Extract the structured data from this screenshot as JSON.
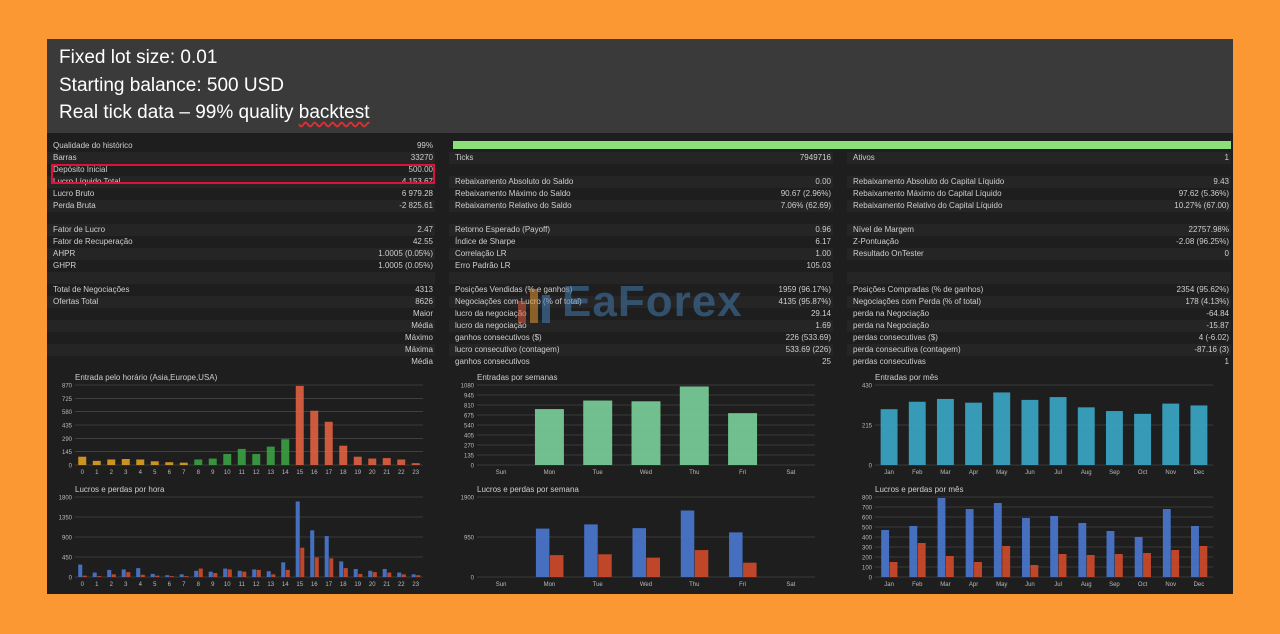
{
  "banner": {
    "line1": "Fixed lot size: 0.01",
    "line2": "Starting balance: 500 USD",
    "line3a": "Real tick data – 99% quality ",
    "line3b": "backtest"
  },
  "report": {
    "col1": [
      {
        "label": "Qualidade do histórico",
        "value": "99%"
      },
      {
        "label": "Barras",
        "value": "33270"
      },
      {
        "label": "Depósito Inicial",
        "value": "500.00"
      },
      {
        "label": "Lucro Líquido Total",
        "value": "4 153.67"
      },
      {
        "label": "Lucro Bruto",
        "value": "6 979.28"
      },
      {
        "label": "Perda Bruta",
        "value": "-2 825.61"
      },
      {
        "label": "",
        "value": ""
      },
      {
        "label": "Fator de Lucro",
        "value": "2.47"
      },
      {
        "label": "Fator de Recuperação",
        "value": "42.55"
      },
      {
        "label": "AHPR",
        "value": "1.0005 (0.05%)"
      },
      {
        "label": "GHPR",
        "value": "1.0005 (0.05%)"
      },
      {
        "label": "",
        "value": ""
      },
      {
        "label": "Total de Negociações",
        "value": "4313"
      },
      {
        "label": "Ofertas Total",
        "value": "8626"
      },
      {
        "label": "",
        "sub": "Maior",
        "value": ""
      },
      {
        "label": "",
        "sub": "Média",
        "value": ""
      },
      {
        "label": "",
        "sub": "Máximo",
        "value": ""
      },
      {
        "label": "",
        "sub": "Máxima",
        "value": ""
      },
      {
        "label": "",
        "sub": "Média",
        "value": ""
      }
    ],
    "col2": [
      {
        "label": "",
        "value": ""
      },
      {
        "label": "Ticks",
        "value": "7949716"
      },
      {
        "label": "",
        "value": ""
      },
      {
        "label": "Rebaixamento Absoluto do Saldo",
        "value": "0.00"
      },
      {
        "label": "Rebaixamento Máximo do Saldo",
        "value": "90.67 (2.96%)"
      },
      {
        "label": "Rebaixamento Relativo do Saldo",
        "value": "7.06% (62.69)"
      },
      {
        "label": "",
        "value": ""
      },
      {
        "label": "Retorno Esperado (Payoff)",
        "value": "0.96"
      },
      {
        "label": "Índice de Sharpe",
        "value": "6.17"
      },
      {
        "label": "Correlação LR",
        "value": "1.00"
      },
      {
        "label": "Erro Padrão LR",
        "value": "105.03"
      },
      {
        "label": "",
        "value": ""
      },
      {
        "label": "Posições Vendidas (% e ganhos)",
        "value": "1959 (96.17%)"
      },
      {
        "label": "Negociações com Lucro (% of total)",
        "value": "4135 (95.87%)"
      },
      {
        "label": "lucro da negociação",
        "value": "29.14"
      },
      {
        "label": "lucro da negociação",
        "value": "1.69"
      },
      {
        "label": "ganhos consecutivos ($)",
        "value": "226 (533.69)"
      },
      {
        "label": "lucro consecutivo (contagem)",
        "value": "533.69 (226)"
      },
      {
        "label": "ganhos consecutivos",
        "value": "25"
      }
    ],
    "col3": [
      {
        "label": "",
        "value": ""
      },
      {
        "label": "Ativos",
        "value": "1"
      },
      {
        "label": "",
        "value": ""
      },
      {
        "label": "Rebaixamento Absoluto do Capital Líquido",
        "value": "9.43"
      },
      {
        "label": "Rebaixamento Máximo do Capital Líquido",
        "value": "97.62 (5.36%)"
      },
      {
        "label": "Rebaixamento Relativo do Capital Líquido",
        "value": "10.27% (67.00)"
      },
      {
        "label": "",
        "value": ""
      },
      {
        "label": "Nível de Margem",
        "value": "22757.98%"
      },
      {
        "label": "Z-Pontuação",
        "value": "-2.08 (96.25%)"
      },
      {
        "label": "Resultado OnTester",
        "value": "0"
      },
      {
        "label": "",
        "value": ""
      },
      {
        "label": "",
        "value": ""
      },
      {
        "label": "Posições Compradas (% de ganhos)",
        "value": "2354 (95.62%)"
      },
      {
        "label": "Negociações com Perda (% of total)",
        "value": "178 (4.13%)"
      },
      {
        "label": "perda na Negociação",
        "value": "-64.84"
      },
      {
        "label": "perda na Negociação",
        "value": "-15.87"
      },
      {
        "label": "perdas consecutivas ($)",
        "value": "4 (-6.02)"
      },
      {
        "label": "perda consecutiva (contagem)",
        "value": "-87.16 (3)"
      },
      {
        "label": "perdas consecutivas",
        "value": "1"
      }
    ]
  },
  "watermark": {
    "text": "EaForex"
  },
  "colors": {
    "asia": "#e0a020",
    "europe": "#3aa040",
    "usa": "#e06040",
    "weeks": "#7ad09a",
    "months": "#3aa8c8",
    "profit": "#4a78d0",
    "loss": "#d04a2a"
  },
  "chart_data": [
    {
      "type": "bar",
      "title": "Entrada pelo horário (Asia,Europe,USA)",
      "categories": [
        "0",
        "1",
        "2",
        "3",
        "4",
        "5",
        "6",
        "7",
        "8",
        "9",
        "10",
        "11",
        "12",
        "13",
        "14",
        "15",
        "16",
        "17",
        "18",
        "19",
        "20",
        "21",
        "22",
        "23"
      ],
      "values": [
        90,
        45,
        60,
        65,
        60,
        40,
        30,
        25,
        60,
        70,
        120,
        175,
        120,
        200,
        280,
        860,
        590,
        470,
        210,
        90,
        70,
        75,
        60,
        20
      ],
      "sessions": [
        "asia",
        "asia",
        "asia",
        "asia",
        "asia",
        "asia",
        "asia",
        "asia",
        "europe",
        "europe",
        "europe",
        "europe",
        "europe",
        "europe",
        "europe",
        "usa",
        "usa",
        "usa",
        "usa",
        "usa",
        "usa",
        "usa",
        "usa",
        "usa"
      ],
      "yticks": [
        "0",
        "145",
        "290",
        "435",
        "580",
        "725",
        "870"
      ],
      "ylim": [
        0,
        870
      ]
    },
    {
      "type": "bar",
      "title": "Entradas por semanas",
      "categories": [
        "Sun",
        "Mon",
        "Tue",
        "Wed",
        "Thu",
        "Fri",
        "Sat"
      ],
      "values": [
        0,
        755,
        870,
        860,
        1060,
        700,
        0
      ],
      "yticks": [
        "0",
        "135",
        "270",
        "405",
        "540",
        "675",
        "810",
        "945",
        "1080"
      ],
      "ylim": [
        0,
        1080
      ]
    },
    {
      "type": "bar",
      "title": "Entradas por mês",
      "categories": [
        "Jan",
        "Feb",
        "Mar",
        "Apr",
        "May",
        "Jun",
        "Jul",
        "Aug",
        "Sep",
        "Oct",
        "Nov",
        "Dec"
      ],
      "values": [
        300,
        340,
        355,
        335,
        390,
        350,
        365,
        310,
        290,
        275,
        330,
        320
      ],
      "yticks": [
        "0",
        "215",
        "430"
      ],
      "ylim": [
        0,
        430
      ]
    },
    {
      "type": "bar",
      "title": "Lucros e perdas por hora",
      "categories": [
        "0",
        "1",
        "2",
        "3",
        "4",
        "5",
        "6",
        "7",
        "8",
        "9",
        "10",
        "11",
        "12",
        "13",
        "14",
        "15",
        "16",
        "17",
        "18",
        "19",
        "20",
        "21",
        "22",
        "23"
      ],
      "series": [
        {
          "name": "",
          "values": [
            280,
            100,
            160,
            170,
            200,
            70,
            40,
            60,
            140,
            120,
            190,
            140,
            170,
            130,
            330,
            1700,
            1050,
            920,
            350,
            180,
            140,
            180,
            100,
            60
          ]
        },
        {
          "name": "",
          "values": [
            30,
            20,
            60,
            110,
            50,
            30,
            20,
            20,
            190,
            90,
            170,
            120,
            160,
            60,
            160,
            660,
            440,
            420,
            200,
            70,
            110,
            100,
            60,
            40
          ]
        }
      ],
      "yticks": [
        "0",
        "450",
        "900",
        "1350",
        "1800"
      ],
      "ylim": [
        0,
        1800
      ]
    },
    {
      "type": "bar",
      "title": "Lucros e perdas por semana",
      "categories": [
        "Sun",
        "Mon",
        "Tue",
        "Wed",
        "Thu",
        "Fri",
        "Sat"
      ],
      "series": [
        {
          "name": "",
          "values": [
            0,
            1150,
            1250,
            1160,
            1580,
            1060,
            0
          ]
        },
        {
          "name": "",
          "values": [
            0,
            520,
            540,
            460,
            640,
            340,
            0
          ]
        }
      ],
      "yticks": [
        "0",
        "950",
        "1900"
      ],
      "ylim": [
        0,
        1900
      ]
    },
    {
      "type": "bar",
      "title": "Lucros e perdas por mês",
      "categories": [
        "Jan",
        "Feb",
        "Mar",
        "Apr",
        "May",
        "Jun",
        "Jul",
        "Aug",
        "Sep",
        "Oct",
        "Nov",
        "Dec"
      ],
      "series": [
        {
          "name": "",
          "values": [
            470,
            510,
            790,
            680,
            740,
            590,
            610,
            540,
            460,
            400,
            680,
            510
          ]
        },
        {
          "name": "",
          "values": [
            150,
            340,
            210,
            150,
            310,
            120,
            230,
            220,
            230,
            240,
            270,
            310
          ]
        }
      ],
      "yticks": [
        "0",
        "100",
        "200",
        "300",
        "400",
        "500",
        "600",
        "700",
        "800"
      ],
      "ylim": [
        0,
        800
      ]
    }
  ]
}
